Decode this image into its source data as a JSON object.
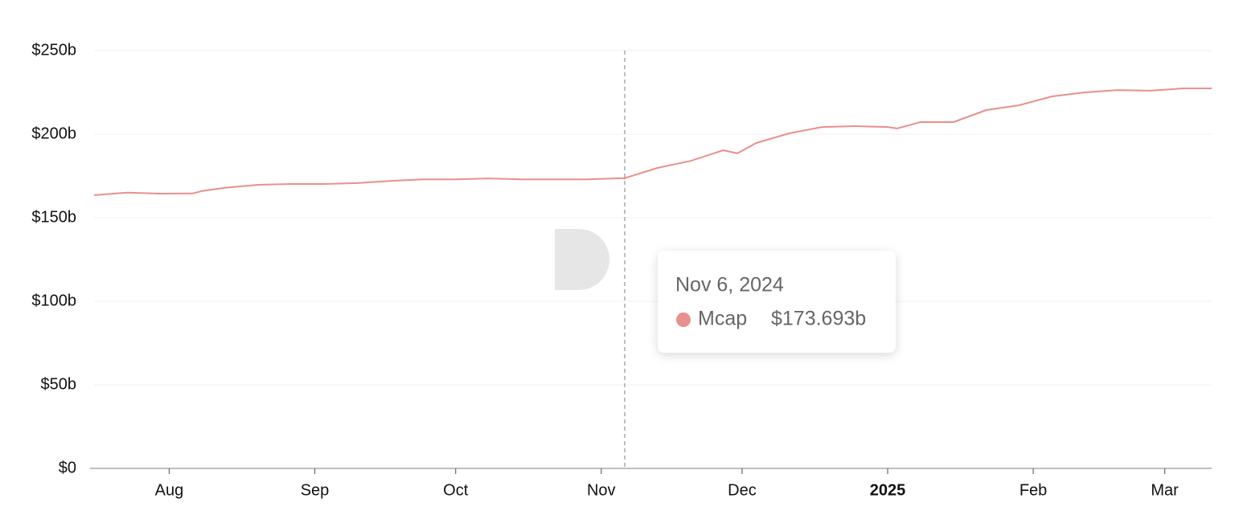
{
  "chart_data": {
    "type": "line",
    "xlim": [
      "2024-07-16",
      "2025-03-11"
    ],
    "ylim": [
      0,
      250
    ],
    "yticks": [
      {
        "value": 0,
        "label": "$0"
      },
      {
        "value": 50,
        "label": "$50b"
      },
      {
        "value": 100,
        "label": "$100b"
      },
      {
        "value": 150,
        "label": "$150b"
      },
      {
        "value": 200,
        "label": "$200b"
      },
      {
        "value": 250,
        "label": "$250b"
      }
    ],
    "xticks": [
      {
        "value": "2024-08-01",
        "label": "Aug"
      },
      {
        "value": "2024-09-01",
        "label": "Sep"
      },
      {
        "value": "2024-10-01",
        "label": "Oct"
      },
      {
        "value": "2024-11-01",
        "label": "Nov"
      },
      {
        "value": "2024-12-01",
        "label": "Dec"
      },
      {
        "value": "2025-01-01",
        "label": "2025",
        "bold": true
      },
      {
        "value": "2025-02-01",
        "label": "Feb"
      },
      {
        "value": "2025-03-01",
        "label": "Mar"
      }
    ],
    "grid": true,
    "series": [
      {
        "name": "Mcap",
        "color": "#e8908d",
        "x": [
          "2024-07-16",
          "2024-07-23",
          "2024-07-30",
          "2024-08-06",
          "2024-08-08",
          "2024-08-13",
          "2024-08-20",
          "2024-08-27",
          "2024-09-03",
          "2024-09-10",
          "2024-09-17",
          "2024-09-24",
          "2024-10-01",
          "2024-10-08",
          "2024-10-15",
          "2024-10-22",
          "2024-10-29",
          "2024-11-06",
          "2024-11-13",
          "2024-11-20",
          "2024-11-27",
          "2024-11-30",
          "2024-12-04",
          "2024-12-11",
          "2024-12-18",
          "2024-12-25",
          "2025-01-01",
          "2025-01-03",
          "2025-01-08",
          "2025-01-15",
          "2025-01-22",
          "2025-01-29",
          "2025-02-05",
          "2025-02-12",
          "2025-02-19",
          "2025-02-26",
          "2025-03-05",
          "2025-03-11"
        ],
        "values": [
          163.5,
          165,
          164.4,
          164.5,
          166,
          168,
          169.7,
          170.2,
          170.2,
          170.7,
          172,
          173,
          173,
          173.5,
          173,
          173,
          173,
          173.693,
          179.8,
          184,
          190.4,
          188.5,
          194.7,
          200.5,
          204.3,
          204.8,
          204.3,
          203.4,
          207.2,
          207.2,
          214.4,
          217.3,
          222.6,
          225,
          226.4,
          226,
          227.4,
          227.4
        ]
      }
    ],
    "tooltip": {
      "x": "2024-11-06",
      "date_label": "Nov 6, 2024",
      "value": 173.693,
      "value_label": "$173.693b"
    }
  }
}
